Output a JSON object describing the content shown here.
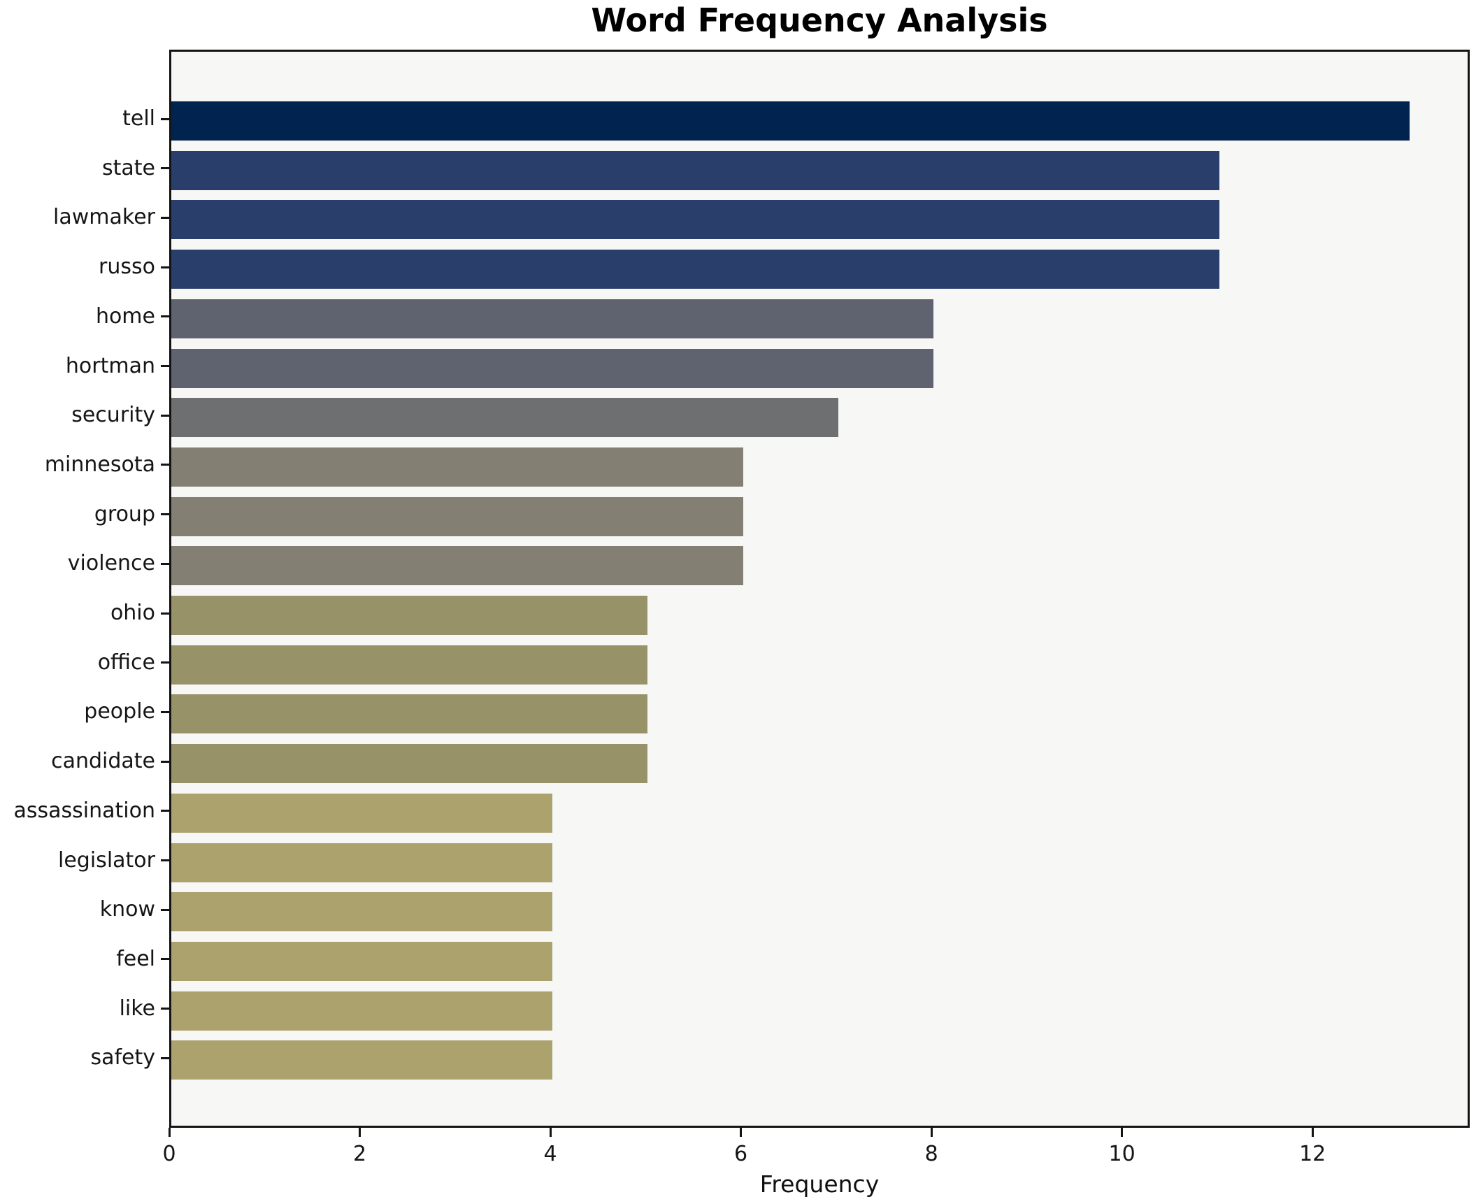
{
  "title": "Word Frequency Analysis",
  "xlabel": "Frequency",
  "chart_data": {
    "type": "bar",
    "orientation": "horizontal",
    "title": "Word Frequency Analysis",
    "xlabel": "Frequency",
    "ylabel": "",
    "grid": false,
    "legend": false,
    "categories": [
      "tell",
      "state",
      "lawmaker",
      "russo",
      "home",
      "hortman",
      "security",
      "minnesota",
      "group",
      "violence",
      "ohio",
      "office",
      "people",
      "candidate",
      "assassination",
      "legislator",
      "know",
      "feel",
      "like",
      "safety"
    ],
    "values": [
      13,
      11,
      11,
      11,
      8,
      8,
      7,
      6,
      6,
      6,
      5,
      5,
      5,
      5,
      4,
      4,
      4,
      4,
      4,
      4
    ],
    "bar_colors": [
      "#00234f",
      "#2a3e6b",
      "#2a3e6b",
      "#2a3e6b",
      "#5f6370",
      "#5f6370",
      "#6e6f71",
      "#838073",
      "#838073",
      "#838073",
      "#989268",
      "#989268",
      "#989268",
      "#989268",
      "#aba26e",
      "#aba26e",
      "#aba26e",
      "#aba26e",
      "#aba26e",
      "#aba26e"
    ],
    "xticks": [
      0,
      2,
      4,
      6,
      8,
      10,
      12
    ],
    "xlim": [
      0,
      13.65
    ],
    "plot_background": "#f7f7f6",
    "figure_background": "#ffffff",
    "spine_color": "#141414"
  }
}
